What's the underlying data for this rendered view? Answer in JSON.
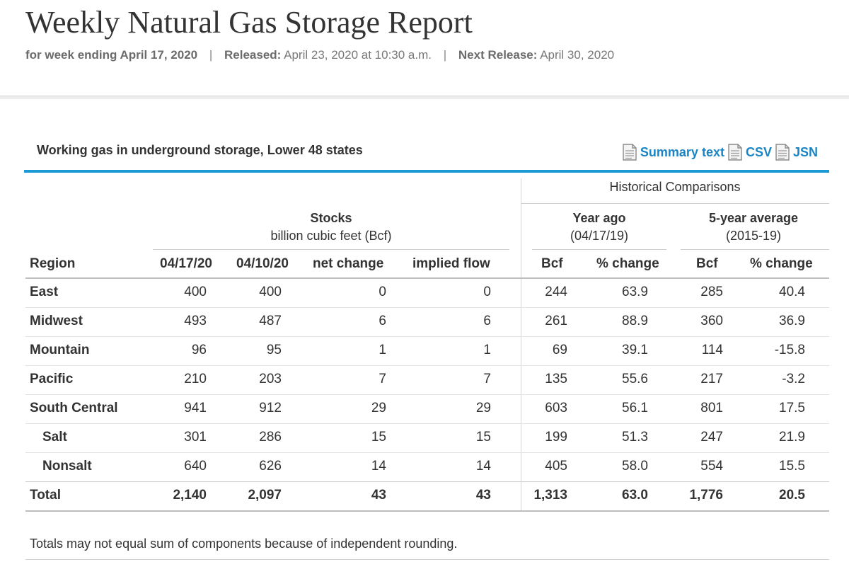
{
  "header": {
    "title": "Weekly Natural Gas Storage Report",
    "week_label": "for week ending April 17, 2020",
    "released_label": "Released:",
    "released_value": "April 23, 2020 at 10:30 a.m.",
    "next_label": "Next Release:",
    "next_value": "April 30, 2020",
    "separator": "|"
  },
  "section": {
    "title": "Working gas in underground storage, Lower 48 states",
    "links": [
      {
        "label": "Summary text",
        "icon": "document-icon"
      },
      {
        "label": "CSV",
        "icon": "document-icon"
      },
      {
        "label": "JSN",
        "icon": "document-icon"
      }
    ],
    "accent_color": "#1c9ad6",
    "link_color": "#1b84c4"
  },
  "table": {
    "historical_header": "Historical Comparisons",
    "stocks_group": {
      "title": "Stocks",
      "subtitle": "billion cubic feet (Bcf)"
    },
    "year_ago_group": {
      "title": "Year ago",
      "subtitle": "(04/17/19)"
    },
    "five_year_group": {
      "title": "5-year average",
      "subtitle": "(2015-19)"
    },
    "columns": [
      "Region",
      "04/17/20",
      "04/10/20",
      "net change",
      "implied flow",
      "Bcf",
      "% change",
      "Bcf",
      "% change"
    ],
    "rows": [
      {
        "region": "East",
        "cur": "400",
        "prev": "400",
        "net": "0",
        "flow": "0",
        "ya_bcf": "244",
        "ya_pct": "63.9",
        "fy_bcf": "285",
        "fy_pct": "40.4"
      },
      {
        "region": "Midwest",
        "cur": "493",
        "prev": "487",
        "net": "6",
        "flow": "6",
        "ya_bcf": "261",
        "ya_pct": "88.9",
        "fy_bcf": "360",
        "fy_pct": "36.9"
      },
      {
        "region": "Mountain",
        "cur": "96",
        "prev": "95",
        "net": "1",
        "flow": "1",
        "ya_bcf": "69",
        "ya_pct": "39.1",
        "fy_bcf": "114",
        "fy_pct": "-15.8"
      },
      {
        "region": "Pacific",
        "cur": "210",
        "prev": "203",
        "net": "7",
        "flow": "7",
        "ya_bcf": "135",
        "ya_pct": "55.6",
        "fy_bcf": "217",
        "fy_pct": "-3.2"
      },
      {
        "region": "South Central",
        "cur": "941",
        "prev": "912",
        "net": "29",
        "flow": "29",
        "ya_bcf": "603",
        "ya_pct": "56.1",
        "fy_bcf": "801",
        "fy_pct": "17.5"
      },
      {
        "region": "Salt",
        "cur": "301",
        "prev": "286",
        "net": "15",
        "flow": "15",
        "ya_bcf": "199",
        "ya_pct": "51.3",
        "fy_bcf": "247",
        "fy_pct": "21.9"
      },
      {
        "region": "Nonsalt",
        "cur": "640",
        "prev": "626",
        "net": "14",
        "flow": "14",
        "ya_bcf": "405",
        "ya_pct": "58.0",
        "fy_bcf": "554",
        "fy_pct": "15.5"
      }
    ],
    "total": {
      "region": "Total",
      "cur": "2,140",
      "prev": "2,097",
      "net": "43",
      "flow": "43",
      "ya_bcf": "1,313",
      "ya_pct": "63.0",
      "fy_bcf": "1,776",
      "fy_pct": "20.5"
    }
  },
  "footnote": "Totals may not equal sum of components because of independent rounding."
}
